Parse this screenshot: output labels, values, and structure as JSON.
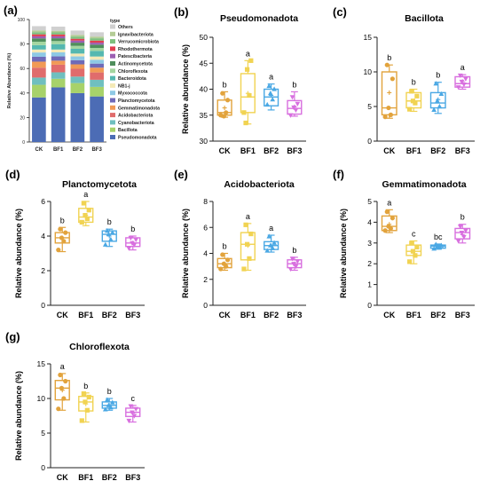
{
  "colors": {
    "CK": "#E2A33C",
    "BF1": "#F1D352",
    "BF2": "#4AA8E4",
    "BF3": "#D86FDF",
    "axis": "#222222"
  },
  "panel_a": {
    "panel_label": "(a)",
    "ylabel": "Relative Abundance (%)",
    "legend_title": "type",
    "yticks": [
      "0",
      "20",
      "40",
      "60",
      "80",
      "100"
    ],
    "categories": [
      "CK",
      "BF1",
      "BF2",
      "BF3"
    ],
    "taxa": [
      {
        "name": "Others",
        "color": "#D0D0D0"
      },
      {
        "name": "Ignavibacteriota",
        "color": "#B4CC96"
      },
      {
        "name": "Verrucomicrobiota",
        "color": "#7EC07E"
      },
      {
        "name": "Rhodothermota",
        "color": "#E23E50"
      },
      {
        "name": "Patescibacteria",
        "color": "#9C5FB3"
      },
      {
        "name": "Actinomycetota",
        "color": "#4F8E5C"
      },
      {
        "name": "Chloroflexota",
        "color": "#A4D6A0"
      },
      {
        "name": "Bacteroidota",
        "color": "#55B8B0"
      },
      {
        "name": "NB1-j",
        "color": "#F4E9B6"
      },
      {
        "name": "Myxococcota",
        "color": "#8EC9E5"
      },
      {
        "name": "Planctomycetota",
        "color": "#6F6AB8"
      },
      {
        "name": "Gemmatimonadota",
        "color": "#F19A56"
      },
      {
        "name": "Acidobacteriota",
        "color": "#E06C6C"
      },
      {
        "name": "Cyanobacteriota",
        "color": "#6FBFBF"
      },
      {
        "name": "Bacillota",
        "color": "#A7D26A"
      },
      {
        "name": "Pseudomonadota",
        "color": "#4C6CB5"
      }
    ]
  },
  "chart_data": [
    {
      "type": "bar",
      "stacked": true,
      "title": "",
      "xlabel": "",
      "ylabel": "Relative Abundance (%)",
      "ylim": [
        0,
        100
      ],
      "categories": [
        "CK",
        "BF1",
        "BF2",
        "BF3"
      ],
      "series": [
        {
          "name": "Pseudomonadota",
          "values": [
            36.4,
            44.6,
            39.9,
            37.2
          ]
        },
        {
          "name": "Bacillota",
          "values": [
            10.3,
            7.0,
            8.2,
            7.8
          ]
        },
        {
          "name": "Cyanobacteriota",
          "values": [
            5.9,
            5.3,
            5.3,
            5.8
          ]
        },
        {
          "name": "Acidobacteriota",
          "values": [
            8.1,
            6.2,
            6.4,
            6.0
          ]
        },
        {
          "name": "Gemmatimonadota",
          "values": [
            4.9,
            3.3,
            3.6,
            3.9
          ]
        },
        {
          "name": "Planctomycetota",
          "values": [
            4.0,
            3.5,
            3.4,
            3.3
          ]
        },
        {
          "name": "Myxococcota",
          "values": [
            3.5,
            3.3,
            3.1,
            3.2
          ]
        },
        {
          "name": "NB1-j",
          "values": [
            2.4,
            2.3,
            2.3,
            2.6
          ]
        },
        {
          "name": "Bacteroidota",
          "values": [
            3.6,
            4.4,
            3.9,
            4.6
          ]
        },
        {
          "name": "Chloroflexota",
          "values": [
            2.8,
            2.5,
            2.4,
            2.4
          ]
        },
        {
          "name": "Actinomycetota",
          "values": [
            2.7,
            2.3,
            2.6,
            2.7
          ]
        },
        {
          "name": "Patescibacteria",
          "values": [
            1.7,
            1.6,
            1.7,
            1.6
          ]
        },
        {
          "name": "Rhodothermota",
          "values": [
            1.6,
            1.5,
            1.5,
            1.7
          ]
        },
        {
          "name": "Verrucomicrobiota",
          "values": [
            1.8,
            1.7,
            1.8,
            1.9
          ]
        },
        {
          "name": "Ignavibacteriota",
          "values": [
            1.4,
            1.3,
            1.4,
            1.4
          ]
        },
        {
          "name": "Others",
          "values": [
            3.5,
            3.4,
            3.5,
            3.5
          ]
        }
      ]
    },
    {
      "type": "box",
      "panel_label": "(b)",
      "title": "Pseudomonadota",
      "ylabel": "Relative abundance (%)",
      "ylim": [
        30,
        50
      ],
      "yticks": [
        "30",
        "35",
        "40",
        "45",
        "50"
      ],
      "categories": [
        "CK",
        "BF1",
        "BF2",
        "BF3"
      ],
      "boxes": [
        {
          "q1": 35.0,
          "median": 35.5,
          "q3": 37.9,
          "min": 34.6,
          "max": 39.5,
          "mean": 36.4,
          "sig": "b",
          "marker": "circle",
          "points": [
            35.0,
            35.5,
            34.8,
            37.9,
            39.2
          ]
        },
        {
          "q1": 35.5,
          "median": 38.5,
          "q3": 43.0,
          "min": 33.3,
          "max": 45.5,
          "mean": 39.2,
          "sig": "a",
          "marker": "square",
          "points": [
            35.5,
            38.8,
            43.8,
            45.5,
            33.5
          ]
        },
        {
          "q1": 36.8,
          "median": 38.5,
          "q3": 40.0,
          "min": 36.0,
          "max": 41.0,
          "mean": 38.8,
          "sig": "a",
          "marker": "triangle",
          "points": [
            37.0,
            38.0,
            39.2,
            40.0,
            40.6
          ]
        },
        {
          "q1": 35.2,
          "median": 36.3,
          "q3": 37.8,
          "min": 34.8,
          "max": 39.5,
          "mean": 36.6,
          "sig": "b",
          "marker": "invtriangle",
          "points": [
            35.0,
            36.0,
            36.5,
            37.2,
            38.5
          ]
        }
      ]
    },
    {
      "type": "box",
      "panel_label": "(c)",
      "title": "Bacillota",
      "ylabel": "",
      "ylim": [
        0,
        15
      ],
      "yticks": [
        "0",
        "5",
        "10",
        "15"
      ],
      "categories": [
        "CK",
        "BF1",
        "BF2",
        "BF3"
      ],
      "boxes": [
        {
          "q1": 3.8,
          "median": 4.8,
          "q3": 10.0,
          "min": 3.3,
          "max": 11.0,
          "mean": 7.0,
          "sig": "b",
          "marker": "circle",
          "points": [
            3.5,
            3.8,
            4.8,
            9.0,
            11.0
          ]
        },
        {
          "q1": 4.8,
          "median": 5.8,
          "q3": 7.0,
          "min": 4.3,
          "max": 7.5,
          "mean": 5.8,
          "sig": "b",
          "marker": "square",
          "points": [
            4.6,
            5.5,
            5.8,
            6.5,
            7.2
          ]
        },
        {
          "q1": 4.8,
          "median": 5.5,
          "q3": 7.0,
          "min": 4.0,
          "max": 8.5,
          "mean": 6.0,
          "sig": "b",
          "marker": "triangle",
          "points": [
            4.5,
            5.0,
            5.8,
            6.8,
            8.3
          ]
        },
        {
          "q1": 7.8,
          "median": 8.3,
          "q3": 9.3,
          "min": 7.5,
          "max": 9.6,
          "mean": 8.6,
          "sig": "a",
          "marker": "invtriangle",
          "points": [
            7.8,
            8.2,
            8.6,
            9.0,
            9.5
          ]
        }
      ]
    },
    {
      "type": "box",
      "panel_label": "(d)",
      "title": "Planctomycetota",
      "ylabel": "Relative abundance (%)",
      "ylim": [
        0,
        6
      ],
      "yticks": [
        "0",
        "2",
        "4",
        "6"
      ],
      "categories": [
        "CK",
        "BF1",
        "BF2",
        "BF3"
      ],
      "boxes": [
        {
          "q1": 3.6,
          "median": 3.9,
          "q3": 4.2,
          "min": 3.1,
          "max": 4.5,
          "mean": 3.9,
          "sig": "b",
          "marker": "circle",
          "points": [
            3.2,
            3.7,
            3.9,
            4.2,
            4.4
          ]
        },
        {
          "q1": 4.8,
          "median": 5.1,
          "q3": 5.6,
          "min": 4.6,
          "max": 6.0,
          "mean": 5.2,
          "sig": "a",
          "marker": "square",
          "points": [
            4.8,
            5.0,
            5.2,
            5.5,
            5.9
          ]
        },
        {
          "q1": 3.7,
          "median": 4.1,
          "q3": 4.3,
          "min": 3.4,
          "max": 4.4,
          "mean": 4.0,
          "sig": "b",
          "marker": "triangle",
          "points": [
            3.5,
            3.8,
            4.1,
            4.2,
            4.3
          ]
        },
        {
          "q1": 3.4,
          "median": 3.6,
          "q3": 3.9,
          "min": 3.2,
          "max": 4.0,
          "mean": 3.6,
          "sig": "b",
          "marker": "invtriangle",
          "points": [
            3.3,
            3.5,
            3.6,
            3.8,
            3.9
          ]
        }
      ]
    },
    {
      "type": "box",
      "panel_label": "(e)",
      "title": "Acidobacteriota",
      "ylabel": "Relative abundance (%)",
      "ylim": [
        0,
        8
      ],
      "yticks": [
        "0",
        "2",
        "4",
        "6",
        "8"
      ],
      "categories": [
        "CK",
        "BF1",
        "BF2",
        "BF3"
      ],
      "boxes": [
        {
          "q1": 2.9,
          "median": 3.2,
          "q3": 3.6,
          "min": 2.7,
          "max": 4.0,
          "mean": 3.2,
          "sig": "b",
          "marker": "circle",
          "points": [
            2.8,
            3.0,
            3.2,
            3.5,
            3.9
          ]
        },
        {
          "q1": 3.5,
          "median": 4.7,
          "q3": 5.6,
          "min": 2.7,
          "max": 6.3,
          "mean": 4.6,
          "sig": "a",
          "marker": "square",
          "points": [
            2.8,
            3.6,
            4.7,
            5.5,
            6.2
          ]
        },
        {
          "q1": 4.3,
          "median": 4.6,
          "q3": 4.9,
          "min": 4.1,
          "max": 5.4,
          "mean": 4.6,
          "sig": "a",
          "marker": "triangle",
          "points": [
            4.2,
            4.4,
            4.6,
            4.8,
            5.3
          ]
        },
        {
          "q1": 2.9,
          "median": 3.2,
          "q3": 3.5,
          "min": 2.7,
          "max": 3.7,
          "mean": 3.2,
          "sig": "b",
          "marker": "invtriangle",
          "points": [
            2.8,
            3.0,
            3.2,
            3.4,
            3.6
          ]
        }
      ]
    },
    {
      "type": "box",
      "panel_label": "(f)",
      "title": "Gemmatimonadota",
      "ylabel": "Relative abundance (%)",
      "ylim": [
        0,
        5
      ],
      "yticks": [
        "0",
        "1",
        "2",
        "3",
        "4",
        "5"
      ],
      "categories": [
        "CK",
        "BF1",
        "BF2",
        "BF3"
      ],
      "boxes": [
        {
          "q1": 3.6,
          "median": 3.8,
          "q3": 4.3,
          "min": 3.5,
          "max": 4.6,
          "mean": 3.9,
          "sig": "a",
          "marker": "circle",
          "points": [
            3.6,
            3.7,
            3.8,
            4.2,
            4.5
          ]
        },
        {
          "q1": 2.4,
          "median": 2.6,
          "q3": 2.9,
          "min": 2.0,
          "max": 3.1,
          "mean": 2.6,
          "sig": "c",
          "marker": "square",
          "points": [
            2.1,
            2.4,
            2.6,
            2.8,
            3.0
          ]
        },
        {
          "q1": 2.75,
          "median": 2.85,
          "q3": 2.9,
          "min": 2.7,
          "max": 2.95,
          "mean": 2.8,
          "sig": "bc",
          "marker": "triangle",
          "points": [
            2.72,
            2.8,
            2.85,
            2.88,
            2.93
          ]
        },
        {
          "q1": 3.2,
          "median": 3.5,
          "q3": 3.7,
          "min": 3.0,
          "max": 3.9,
          "mean": 3.4,
          "sig": "b",
          "marker": "invtriangle",
          "points": [
            3.1,
            3.3,
            3.5,
            3.6,
            3.8
          ]
        }
      ]
    },
    {
      "type": "box",
      "panel_label": "(g)",
      "title": "Chloroflexota",
      "ylabel": "Relative abundance (%)",
      "ylim": [
        0,
        15
      ],
      "yticks": [
        "0",
        "5",
        "10",
        "15"
      ],
      "categories": [
        "CK",
        "BF1",
        "BF2",
        "BF3"
      ],
      "boxes": [
        {
          "q1": 9.8,
          "median": 11.5,
          "q3": 12.6,
          "min": 8.3,
          "max": 13.6,
          "mean": 11.2,
          "sig": "a",
          "marker": "circle",
          "points": [
            8.5,
            10.0,
            11.5,
            12.5,
            13.4
          ]
        },
        {
          "q1": 8.2,
          "median": 9.5,
          "q3": 10.3,
          "min": 6.6,
          "max": 10.8,
          "mean": 9.2,
          "sig": "b",
          "marker": "square",
          "points": [
            6.8,
            8.3,
            9.5,
            10.2,
            10.7
          ]
        },
        {
          "q1": 8.6,
          "median": 9.0,
          "q3": 9.5,
          "min": 8.3,
          "max": 10.0,
          "mean": 9.0,
          "sig": "b",
          "marker": "triangle",
          "points": [
            8.4,
            8.7,
            9.0,
            9.4,
            9.8
          ]
        },
        {
          "q1": 7.4,
          "median": 8.0,
          "q3": 8.6,
          "min": 6.6,
          "max": 9.0,
          "mean": 7.9,
          "sig": "c",
          "marker": "invtriangle",
          "points": [
            6.8,
            7.5,
            8.0,
            8.5,
            8.9
          ]
        }
      ]
    }
  ]
}
